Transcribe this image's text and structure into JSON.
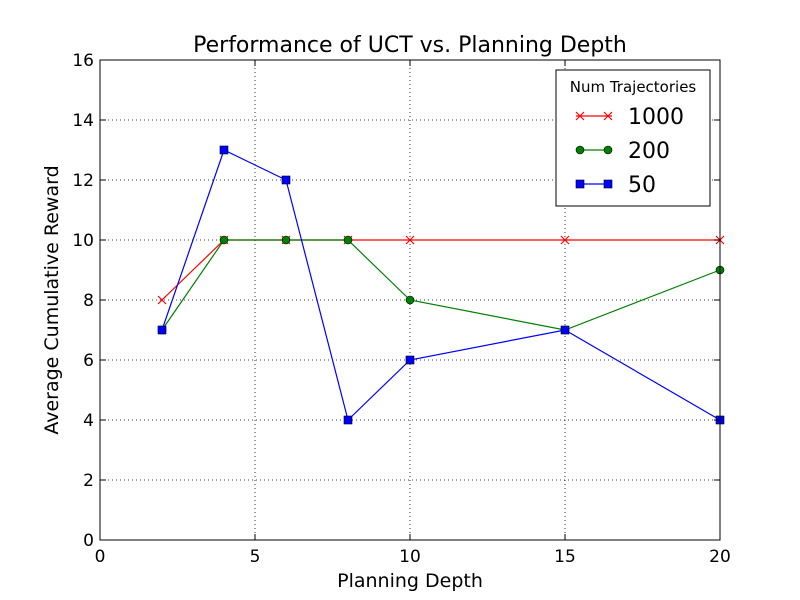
{
  "chart_data": {
    "type": "line",
    "title": "Performance of UCT vs. Planning Depth",
    "xlabel": "Planning Depth",
    "ylabel": "Average Cumulative Reward",
    "xlim": [
      0,
      20
    ],
    "ylim": [
      0,
      16
    ],
    "xticks": [
      0,
      5,
      10,
      15,
      20
    ],
    "yticks": [
      0,
      2,
      4,
      6,
      8,
      10,
      12,
      14,
      16
    ],
    "grid": true,
    "legend": {
      "title": "Num Trajectories",
      "position": "top-right"
    },
    "x": [
      2,
      4,
      6,
      8,
      10,
      15,
      20
    ],
    "series": [
      {
        "name": "1000",
        "values": [
          8,
          10,
          10,
          10,
          10,
          10,
          10
        ],
        "color": "#ff0000",
        "marker": "x"
      },
      {
        "name": "200",
        "values": [
          7,
          10,
          10,
          10,
          8,
          7,
          9
        ],
        "color": "#008000",
        "marker": "circle"
      },
      {
        "name": "50",
        "values": [
          7,
          13,
          12,
          4,
          6,
          7,
          4
        ],
        "color": "#0000ff",
        "marker": "square"
      }
    ]
  }
}
